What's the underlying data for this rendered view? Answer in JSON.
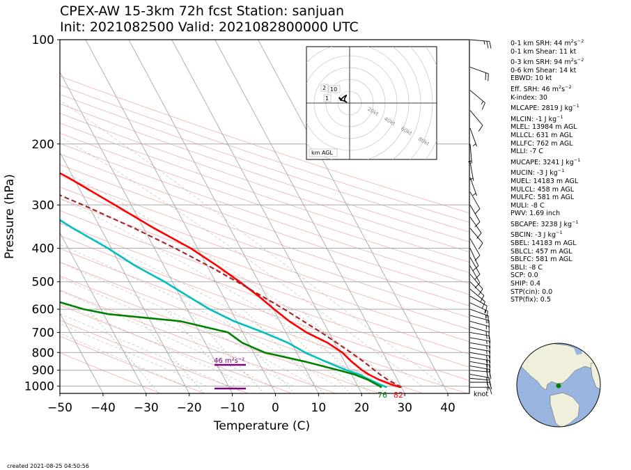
{
  "title": {
    "line1": "CPEX-AW 15-3km  72h fcst  Station: sanjuan",
    "line2": "Init: 2021082500  Valid: 2021082800000 UTC"
  },
  "chart_data": {
    "type": "skew-t log-p",
    "xlabel": "Temperature (C)",
    "ylabel": "Pressure (hPa)",
    "xlim": [
      -50,
      45
    ],
    "ylim": [
      1050,
      100
    ],
    "y_scale": "log",
    "x_ticks": [
      -50,
      -40,
      -30,
      -20,
      -10,
      0,
      10,
      20,
      30,
      40
    ],
    "y_ticks": [
      100,
      200,
      300,
      400,
      500,
      600,
      700,
      800,
      900,
      1000
    ],
    "series": [
      {
        "color": "#ff0000",
        "points": [
          [
            1008,
            29.8
          ],
          [
            990,
            28.0
          ],
          [
            960,
            25.8
          ],
          [
            925,
            24.0
          ],
          [
            900,
            23.0
          ],
          [
            850,
            21.6
          ],
          [
            800,
            20.6
          ],
          [
            750,
            18.4
          ],
          [
            700,
            14.8
          ],
          [
            650,
            12.2
          ],
          [
            600,
            10.2
          ],
          [
            550,
            8.2
          ],
          [
            500,
            5.6
          ],
          [
            450,
            2.4
          ],
          [
            400,
            -1.6
          ],
          [
            350,
            -7.6
          ],
          [
            300,
            -13.8
          ],
          [
            250,
            -21.2
          ],
          [
            220,
            -27.2
          ],
          [
            200,
            -32.4
          ],
          [
            180,
            -38.0
          ],
          [
            160,
            -44.0
          ],
          [
            140,
            -51.4
          ],
          [
            125,
            -58.8
          ],
          [
            110,
            -67.8
          ],
          [
            100,
            -74.4
          ]
        ]
      },
      {
        "color": "#00bfbf",
        "points": [
          [
            1008,
            26.6
          ],
          [
            990,
            25.4
          ],
          [
            960,
            23.6
          ],
          [
            925,
            21.8
          ],
          [
            900,
            19.4
          ],
          [
            850,
            15.6
          ],
          [
            800,
            12.0
          ],
          [
            750,
            9.2
          ],
          [
            700,
            4.8
          ],
          [
            650,
            -0.6
          ],
          [
            600,
            -4.8
          ],
          [
            550,
            -8.2
          ],
          [
            500,
            -11.8
          ],
          [
            450,
            -16.6
          ],
          [
            400,
            -20.8
          ],
          [
            350,
            -26.4
          ],
          [
            300,
            -32.2
          ],
          [
            250,
            -37.4
          ],
          [
            220,
            -40.2
          ],
          [
            200,
            -43.4
          ],
          [
            180,
            -46.6
          ],
          [
            160,
            -51.4
          ],
          [
            140,
            -57.0
          ],
          [
            125,
            -64.6
          ],
          [
            110,
            -71.8
          ],
          [
            100,
            -78.0
          ]
        ]
      },
      {
        "color": "#008000",
        "points": [
          [
            1008,
            25.4
          ],
          [
            990,
            24.6
          ],
          [
            960,
            23.2
          ],
          [
            925,
            20.6
          ],
          [
            900,
            17.6
          ],
          [
            850,
            10.8
          ],
          [
            800,
            2.6
          ],
          [
            750,
            -1.4
          ],
          [
            700,
            -3.4
          ],
          [
            650,
            -13.0
          ],
          [
            620,
            -28.8
          ],
          [
            600,
            -34.0
          ],
          [
            560,
            -40.8
          ],
          [
            520,
            -45.0
          ],
          [
            480,
            -48.0
          ],
          [
            450,
            -52.0
          ],
          [
            420,
            -62.0
          ],
          [
            390,
            -71.0
          ],
          [
            360,
            -69.0
          ],
          [
            340,
            -75.0
          ],
          [
            320,
            -78.0
          ],
          [
            300,
            -80.0
          ],
          [
            270,
            -78.0
          ],
          [
            250,
            -78.0
          ],
          [
            230,
            -78.0
          ],
          [
            215,
            -99.0
          ],
          [
            200,
            -108.0
          ],
          [
            180,
            -97.0
          ],
          [
            160,
            -99.0
          ],
          [
            140,
            -96.0
          ],
          [
            120,
            -96.0
          ],
          [
            100,
            -97.0
          ]
        ]
      },
      {
        "color": "#a52a2a",
        "dashed": true,
        "points": [
          [
            1008,
            30.0
          ],
          [
            960,
            27.8
          ],
          [
            925,
            26.6
          ],
          [
            900,
            25.9
          ],
          [
            850,
            24.4
          ],
          [
            800,
            22.6
          ],
          [
            750,
            20.5
          ],
          [
            700,
            18.2
          ],
          [
            650,
            15.5
          ],
          [
            600,
            12.5
          ],
          [
            550,
            9.0
          ],
          [
            500,
            5.0
          ],
          [
            450,
            0.4
          ],
          [
            400,
            -5.2
          ],
          [
            350,
            -12.2
          ],
          [
            300,
            -21.2
          ],
          [
            250,
            -32.8
          ],
          [
            200,
            -48.0
          ],
          [
            160,
            -63.0
          ],
          [
            130,
            -76.5
          ],
          [
            110,
            -87.5
          ],
          [
            100,
            -94.5
          ]
        ]
      }
    ],
    "annotations": {
      "helicity_bar": "46 m²s⁻²",
      "surface_dewpoint": "76",
      "surface_temperature": "82",
      "wind_units": "knot"
    },
    "hodograph": {
      "caption": "km AGL",
      "ring_labels": [
        "20kt",
        "40kt",
        "60kt",
        "80kt"
      ],
      "height_labels": [
        "2",
        "10",
        "1"
      ],
      "points": [
        [
          -7.6,
          3.7
        ],
        [
          -9.0,
          4.8
        ],
        [
          -7.6,
          2.4
        ],
        [
          -5.9,
          4.6
        ],
        [
          -2.6,
          6.8
        ],
        [
          -4.4,
          3.5
        ],
        [
          -3.9,
          1.5
        ],
        [
          -2.2,
          0.6
        ],
        [
          -4.8,
          1.8
        ],
        [
          -6.8,
          2.3
        ],
        [
          -7.6,
          3.7
        ]
      ]
    },
    "wind_barbs": [
      {
        "p": 1008,
        "dir": 90,
        "spd": 15
      },
      {
        "p": 975,
        "dir": 90,
        "spd": 20
      },
      {
        "p": 950,
        "dir": 95,
        "spd": 20
      },
      {
        "p": 925,
        "dir": 100,
        "spd": 20
      },
      {
        "p": 900,
        "dir": 95,
        "spd": 20
      },
      {
        "p": 875,
        "dir": 100,
        "spd": 20
      },
      {
        "p": 850,
        "dir": 100,
        "spd": 20
      },
      {
        "p": 825,
        "dir": 100,
        "spd": 20
      },
      {
        "p": 800,
        "dir": 100,
        "spd": 20
      },
      {
        "p": 775,
        "dir": 100,
        "spd": 15
      },
      {
        "p": 750,
        "dir": 100,
        "spd": 15
      },
      {
        "p": 725,
        "dir": 100,
        "spd": 15
      },
      {
        "p": 700,
        "dir": 100,
        "spd": 15
      },
      {
        "p": 675,
        "dir": 105,
        "spd": 15
      },
      {
        "p": 650,
        "dir": 105,
        "spd": 15
      },
      {
        "p": 625,
        "dir": 105,
        "spd": 15
      },
      {
        "p": 600,
        "dir": 110,
        "spd": 15
      },
      {
        "p": 575,
        "dir": 115,
        "spd": 15
      },
      {
        "p": 550,
        "dir": 120,
        "spd": 10
      },
      {
        "p": 525,
        "dir": 130,
        "spd": 10
      },
      {
        "p": 500,
        "dir": 135,
        "spd": 10
      },
      {
        "p": 475,
        "dir": 140,
        "spd": 10
      },
      {
        "p": 450,
        "dir": 150,
        "spd": 10
      },
      {
        "p": 425,
        "dir": 150,
        "spd": 10
      },
      {
        "p": 400,
        "dir": 155,
        "spd": 10
      },
      {
        "p": 375,
        "dir": 150,
        "spd": 10
      },
      {
        "p": 350,
        "dir": 140,
        "spd": 10
      },
      {
        "p": 325,
        "dir": 145,
        "spd": 10
      },
      {
        "p": 300,
        "dir": 150,
        "spd": 10
      },
      {
        "p": 275,
        "dir": 150,
        "spd": 10
      },
      {
        "p": 250,
        "dir": 160,
        "spd": 5
      },
      {
        "p": 225,
        "dir": 170,
        "spd": 5
      },
      {
        "p": 200,
        "dir": 175,
        "spd": 5
      },
      {
        "p": 180,
        "dir": 160,
        "spd": 5
      },
      {
        "p": 160,
        "dir": 140,
        "spd": 10
      },
      {
        "p": 140,
        "dir": 130,
        "spd": 15
      },
      {
        "p": 120,
        "dir": 110,
        "spd": 20
      },
      {
        "p": 100,
        "dir": 95,
        "spd": 25
      }
    ]
  },
  "indices": [
    {
      "text": "0-1 km SRH: 44 m",
      "sup": "2",
      "text2": "s",
      "sup2": "−2"
    },
    {
      "text": "0-1 km Shear: 11 kt"
    },
    {
      "text": "0-3 km SRH: 94 m",
      "sup": "2",
      "text2": "s",
      "sup2": "−2",
      "gap": true
    },
    {
      "text": "0-6 km Shear: 14 kt"
    },
    {
      "text": "EBWD: 10 kt"
    },
    {
      "text": "Eff. SRH: 46 m",
      "sup": "2",
      "text2": "s",
      "sup2": "−2",
      "gap": true
    },
    {
      "text": "K-index: 30"
    },
    {
      "text": "MLCAPE: 2819 J kg",
      "sup": "−1",
      "gap": true
    },
    {
      "text": "MLCIN: -1 J kg",
      "sup": "−1",
      "gap": true
    },
    {
      "text": "MLEL: 13984 m AGL"
    },
    {
      "text": "MLLCL: 631 m AGL"
    },
    {
      "text": "MLLFC: 762 m AGL"
    },
    {
      "text": "MLLI: -7 C"
    },
    {
      "text": "MUCAPE: 3241 J kg",
      "sup": "−1",
      "gap": true
    },
    {
      "text": "MUCIN: -3 J kg",
      "sup": "−1",
      "gap": true
    },
    {
      "text": "MUEL: 14183 m AGL"
    },
    {
      "text": "MULCL: 458 m AGL"
    },
    {
      "text": "MULFC: 581 m AGL"
    },
    {
      "text": "MULI: -8 C"
    },
    {
      "text": "PWV: 1.69 inch"
    },
    {
      "text": "SBCAPE: 3238 J kg",
      "sup": "−1",
      "gap": true
    },
    {
      "text": "SBCIN: -3 J kg",
      "sup": "−1",
      "gap": true
    },
    {
      "text": "SBEL: 14183 m AGL"
    },
    {
      "text": "SBLCL: 457 m AGL"
    },
    {
      "text": "SBLFC: 581 m AGL"
    },
    {
      "text": "SBLI: -8 C"
    },
    {
      "text": "SCP: 0.0"
    },
    {
      "text": "SHIP: 0.4"
    },
    {
      "text": "STP(cin): 0.0"
    },
    {
      "text": "STP(fix): 0.5"
    }
  ],
  "footer": {
    "created": "created 2021-08-25 04:50:56"
  },
  "colors": {
    "temperature": "#ff0000",
    "dewpoint": "#008000",
    "wetbulb": "#00bfbf",
    "parcel": "#a52a2a",
    "srh_bar": "#800080"
  }
}
